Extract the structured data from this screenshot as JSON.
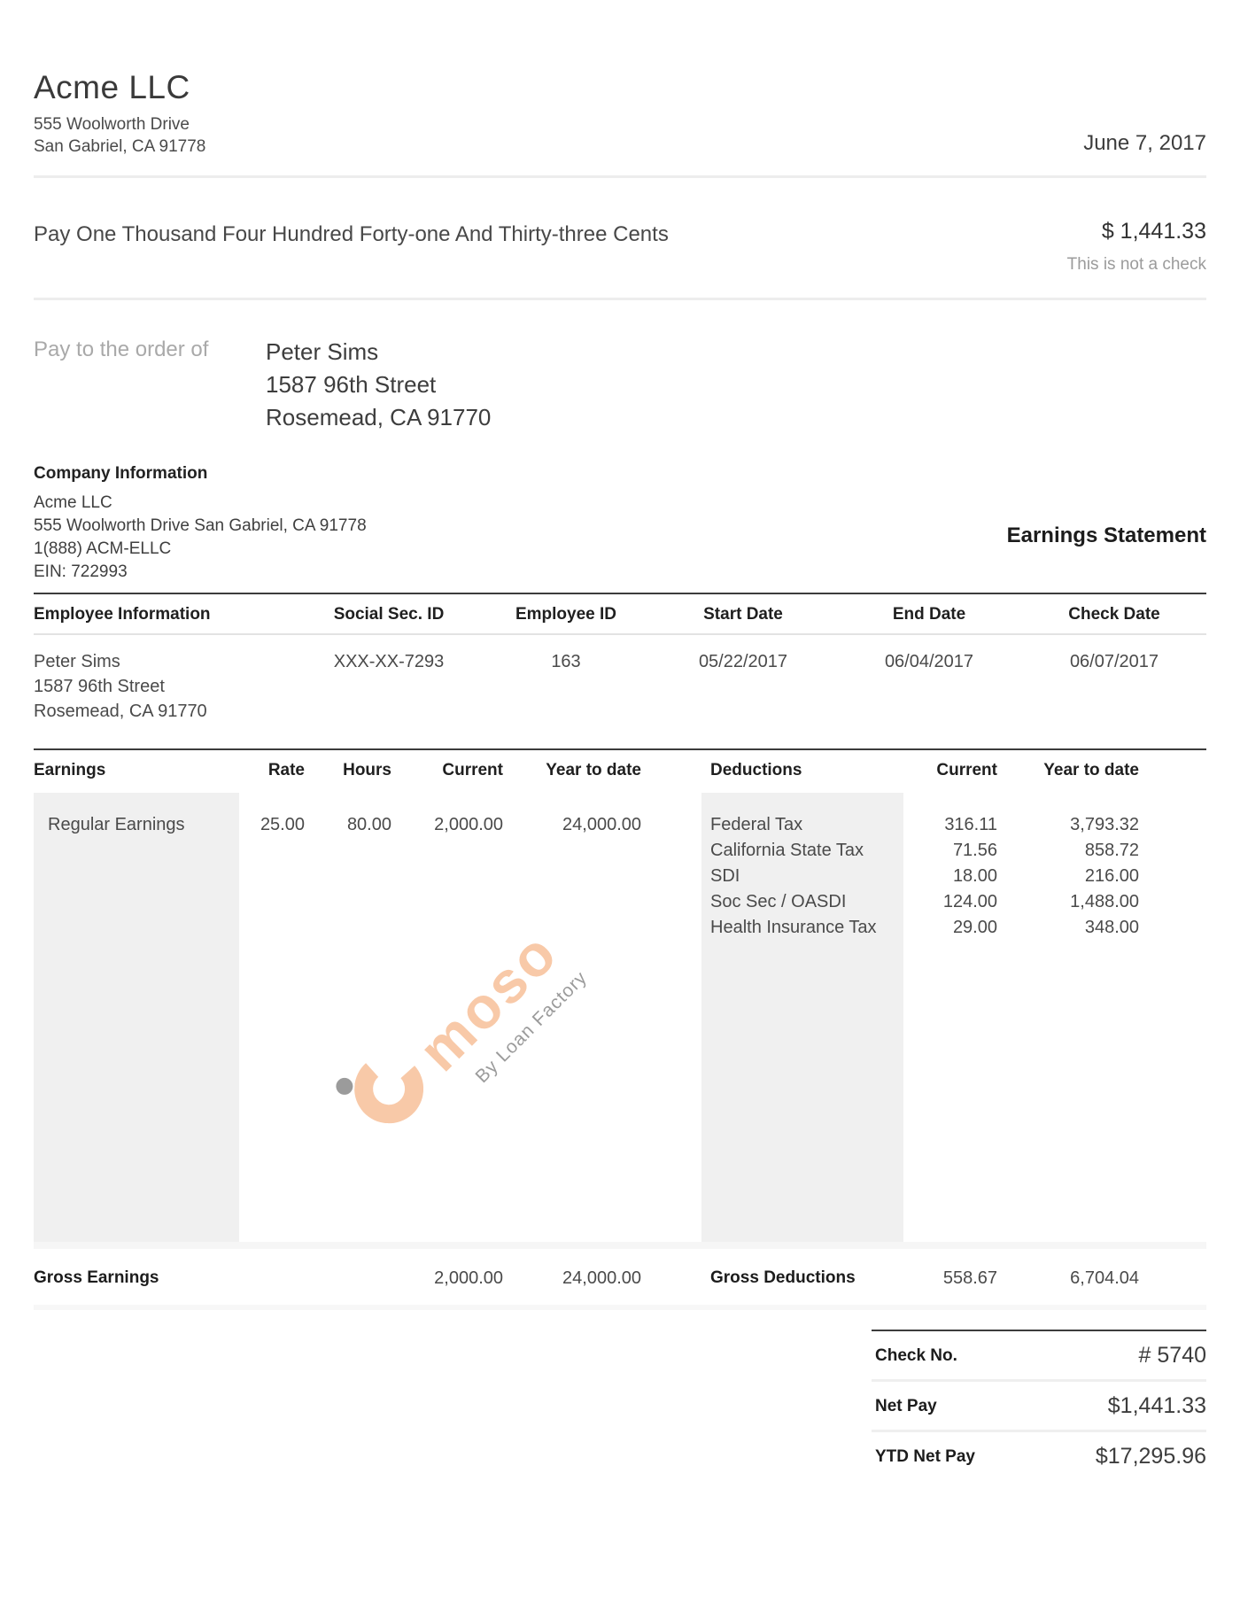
{
  "header": {
    "company_name": "Acme LLC",
    "address_line1": "555 Woolworth Drive",
    "address_line2": "San Gabriel, CA 91778",
    "date": "June 7, 2017"
  },
  "pay_line": {
    "text": "Pay One Thousand Four Hundred Forty-one And Thirty-three Cents",
    "amount": "$ 1,441.33",
    "disclaimer": "This is not a check"
  },
  "payee": {
    "label": "Pay to the order of",
    "name": "Peter Sims",
    "address_line1": "1587 96th Street",
    "address_line2": "Rosemead, CA 91770"
  },
  "company_info": {
    "title": "Company Information",
    "name": "Acme LLC",
    "address": "555 Woolworth Drive San Gabriel, CA 91778",
    "phone": "1(888) ACM-ELLC",
    "ein": "EIN: 722993",
    "statement_title": "Earnings Statement"
  },
  "employee_table": {
    "headers": {
      "info": "Employee Information",
      "ssn": "Social Sec. ID",
      "employee_id": "Employee ID",
      "start_date": "Start Date",
      "end_date": "End Date",
      "check_date": "Check Date"
    },
    "values": {
      "name": "Peter Sims",
      "address_line1": "1587 96th Street",
      "address_line2": "Rosemead, CA 91770",
      "ssn": "XXX-XX-7293",
      "employee_id": "163",
      "start_date": "05/22/2017",
      "end_date": "06/04/2017",
      "check_date": "06/07/2017"
    }
  },
  "earnings_table": {
    "headers": {
      "earnings": "Earnings",
      "rate": "Rate",
      "hours": "Hours",
      "current": "Current",
      "ytd": "Year to date"
    },
    "rows": [
      {
        "label": "Regular Earnings",
        "rate": "25.00",
        "hours": "80.00",
        "current": "2,000.00",
        "ytd": "24,000.00"
      }
    ],
    "gross": {
      "label": "Gross Earnings",
      "current": "2,000.00",
      "ytd": "24,000.00"
    }
  },
  "deductions_table": {
    "headers": {
      "deductions": "Deductions",
      "current": "Current",
      "ytd": "Year to date"
    },
    "rows": [
      {
        "label": "Federal Tax",
        "current": "316.11",
        "ytd": "3,793.32"
      },
      {
        "label": "California State Tax",
        "current": "71.56",
        "ytd": "858.72"
      },
      {
        "label": "SDI",
        "current": "18.00",
        "ytd": "216.00"
      },
      {
        "label": "Soc Sec / OASDI",
        "current": "124.00",
        "ytd": "1,488.00"
      },
      {
        "label": "Health Insurance Tax",
        "current": "29.00",
        "ytd": "348.00"
      }
    ],
    "gross": {
      "label": "Gross Deductions",
      "current": "558.67",
      "ytd": "6,704.04"
    }
  },
  "watermark": {
    "brand": "moso",
    "tagline": "By Loan Factory",
    "accent_color": "#f8c9a8",
    "dot_color": "#9b9b9b"
  },
  "summary": {
    "rows": [
      {
        "label": "Check No.",
        "value": "# 5740"
      },
      {
        "label": "Net Pay",
        "value": "$1,441.33"
      },
      {
        "label": "YTD Net Pay",
        "value": "$17,295.96"
      }
    ]
  }
}
